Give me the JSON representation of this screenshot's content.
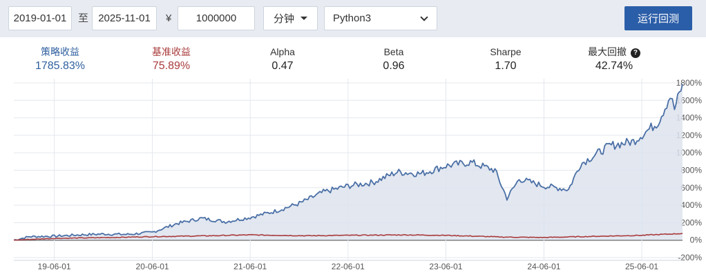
{
  "toolbar": {
    "start_date": "2019-01-01",
    "range_sep": "至",
    "end_date": "2025-11-01",
    "currency_symbol": "¥",
    "capital": "1000000",
    "frequency": "分钟",
    "language": "Python3",
    "run_label": "运行回测"
  },
  "stats": [
    {
      "label": "策略收益",
      "value": "1785.83%",
      "color": "#2f5f9f"
    },
    {
      "label": "基准收益",
      "value": "75.89%",
      "color": "#a93a3a"
    },
    {
      "label": "Alpha",
      "value": "0.47",
      "color": "#222222"
    },
    {
      "label": "Beta",
      "value": "0.96",
      "color": "#222222"
    },
    {
      "label": "Sharpe",
      "value": "1.70",
      "color": "#222222"
    },
    {
      "label": "最大回撤",
      "value": "42.74%",
      "color": "#222222"
    }
  ],
  "chart_data": {
    "type": "area",
    "x_ticks": [
      "19-06-01",
      "20-06-01",
      "21-06-01",
      "22-06-01",
      "23-06-01",
      "24-06-01",
      "25-06-01"
    ],
    "x_range": [
      "2019-01-01",
      "2025-10-31"
    ],
    "ylim": [
      -200,
      1800
    ],
    "y_ticks": [
      -200,
      0,
      200,
      400,
      600,
      800,
      1000,
      1200,
      1400,
      1600,
      1800
    ],
    "y_unit": "%",
    "grid": true,
    "series": [
      {
        "name": "策略收益",
        "color": "#4a6fa5",
        "fill": "#dde3ed",
        "points": [
          [
            "2019-01-01",
            0
          ],
          [
            "2019-03-01",
            40
          ],
          [
            "2019-06-01",
            45
          ],
          [
            "2019-09-01",
            60
          ],
          [
            "2019-12-01",
            70
          ],
          [
            "2020-03-01",
            65
          ],
          [
            "2020-06-01",
            90
          ],
          [
            "2020-09-01",
            190
          ],
          [
            "2020-12-01",
            250
          ],
          [
            "2021-03-01",
            210
          ],
          [
            "2021-06-01",
            260
          ],
          [
            "2021-09-01",
            330
          ],
          [
            "2021-12-01",
            420
          ],
          [
            "2022-03-01",
            550
          ],
          [
            "2022-06-01",
            620
          ],
          [
            "2022-09-01",
            660
          ],
          [
            "2022-12-01",
            780
          ],
          [
            "2023-03-01",
            760
          ],
          [
            "2023-06-01",
            850
          ],
          [
            "2023-09-01",
            890
          ],
          [
            "2023-12-01",
            800
          ],
          [
            "2024-01-15",
            480
          ],
          [
            "2024-03-01",
            700
          ],
          [
            "2024-06-01",
            620
          ],
          [
            "2024-09-01",
            580
          ],
          [
            "2024-10-15",
            870
          ],
          [
            "2024-12-01",
            960
          ],
          [
            "2025-02-01",
            1080
          ],
          [
            "2025-05-01",
            1130
          ],
          [
            "2025-08-01",
            1350
          ],
          [
            "2025-09-15",
            1650
          ],
          [
            "2025-10-01",
            1500
          ],
          [
            "2025-10-31",
            1786
          ]
        ]
      },
      {
        "name": "基准收益",
        "color": "#a93a3a",
        "points": [
          [
            "2019-01-01",
            0
          ],
          [
            "2019-06-01",
            20
          ],
          [
            "2020-01-01",
            30
          ],
          [
            "2020-06-01",
            40
          ],
          [
            "2021-01-01",
            50
          ],
          [
            "2021-06-01",
            60
          ],
          [
            "2022-01-01",
            50
          ],
          [
            "2022-06-01",
            55
          ],
          [
            "2023-01-01",
            60
          ],
          [
            "2023-06-01",
            55
          ],
          [
            "2024-01-01",
            35
          ],
          [
            "2024-06-01",
            30
          ],
          [
            "2025-01-01",
            45
          ],
          [
            "2025-06-01",
            55
          ],
          [
            "2025-10-31",
            76
          ]
        ]
      }
    ]
  }
}
